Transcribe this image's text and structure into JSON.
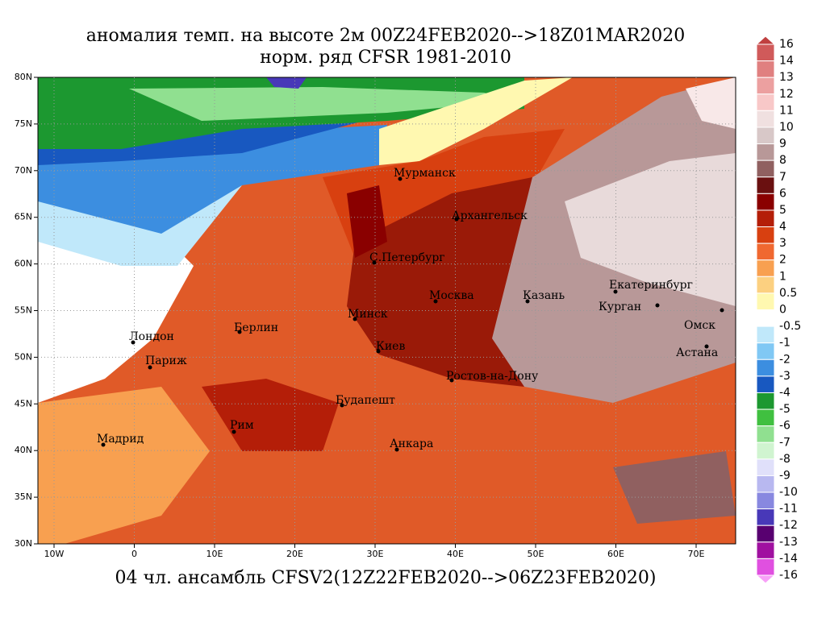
{
  "title": [
    "аномалия темп. на высоте 2м 00Z24FEB2020-->18Z01MAR2020",
    "норм. ряд CFSR 1981-2010"
  ],
  "caption": "04 чл. ансамбль CFSV2(12Z22FEB2020-->06Z23FEB2020)",
  "map": {
    "lat_labels": [
      "80N",
      "75N",
      "70N",
      "65N",
      "60N",
      "55N",
      "50N",
      "45N",
      "40N",
      "35N",
      "30N"
    ],
    "lon_labels": [
      "10W",
      "0",
      "10E",
      "20E",
      "30E",
      "40E",
      "50E",
      "60E",
      "70E"
    ],
    "cities": [
      "Мурманск",
      "Архангельск",
      "С.Петербург",
      "Москва",
      "Казань",
      "Екатеринбург",
      "Курган",
      "Омск",
      "Астана",
      "Минск",
      "Берлин",
      "Лондон",
      "Париж",
      "Киев",
      "Ростов-на-Дону",
      "Будапешт",
      "Рим",
      "Мадрид",
      "Анкара"
    ]
  },
  "colorbar": {
    "labels": [
      "16",
      "14",
      "13",
      "12",
      "11",
      "10",
      "9",
      "8",
      "7",
      "6",
      "5",
      "4",
      "3",
      "2",
      "1",
      "0.5",
      "0",
      "-0.5",
      "-1",
      "-2",
      "-3",
      "-4",
      "-5",
      "-6",
      "-7",
      "-8",
      "-9",
      "-10",
      "-11",
      "-12",
      "-13",
      "-14",
      "-16"
    ],
    "colors": [
      "#c04040",
      "#d05a5a",
      "#e08080",
      "#eca0a0",
      "#f8c8c8",
      "#f0e0e0",
      "#d8c8c8",
      "#b89898",
      "#906060",
      "#6a1010",
      "#8a0000",
      "#b41e08",
      "#d84010",
      "#f06830",
      "#f8a050",
      "#fcd080",
      "#fff8b0",
      "#ffffff",
      "#c0e8fa",
      "#80c8f4",
      "#3c8ee0",
      "#1858c0",
      "#1c9830",
      "#40c040",
      "#90e090",
      "#d0f4d0",
      "#e0e0fa",
      "#b8b8f0",
      "#8888e0",
      "#4838b8",
      "#580070",
      "#a010a0",
      "#e050e0",
      "#f8a0f8"
    ]
  }
}
